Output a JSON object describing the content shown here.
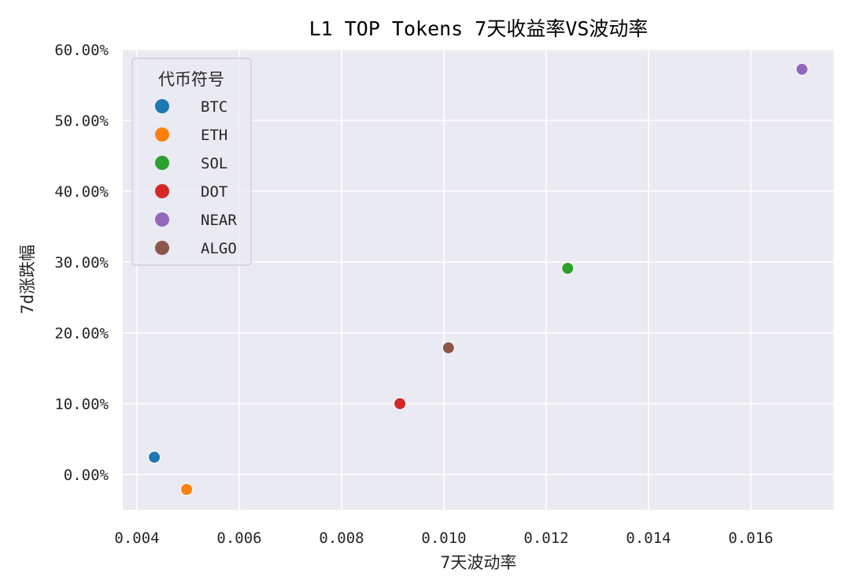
{
  "chart_data": {
    "type": "scatter",
    "title": "L1 TOP Tokens 7天收益率VS波动率",
    "xlabel": "7天波动率",
    "ylabel": "7d涨跌幅",
    "xlim": [
      0.00373,
      0.01762
    ],
    "ylim": [
      -0.052,
      0.6
    ],
    "x_ticks": [
      0.004,
      0.006,
      0.008,
      0.01,
      0.012,
      0.014,
      0.016
    ],
    "x_tick_labels": [
      "0.004",
      "0.006",
      "0.008",
      "0.010",
      "0.012",
      "0.014",
      "0.016"
    ],
    "y_ticks": [
      0.0,
      0.1,
      0.2,
      0.3,
      0.4,
      0.5,
      0.6
    ],
    "y_tick_labels": [
      "0.00%",
      "10.00%",
      "20.00%",
      "30.00%",
      "40.00%",
      "50.00%",
      "60.00%"
    ],
    "grid": true,
    "legend": {
      "title": "代币符号",
      "position": "upper left"
    },
    "series": [
      {
        "name": "BTC",
        "color": "#1f77b4",
        "x": 0.00434,
        "y": 0.0244
      },
      {
        "name": "ETH",
        "color": "#ff7f0e",
        "x": 0.00497,
        "y": -0.0211
      },
      {
        "name": "SOL",
        "color": "#2ca02c",
        "x": 0.01242,
        "y": 0.2911
      },
      {
        "name": "DOT",
        "color": "#d62728",
        "x": 0.00914,
        "y": 0.1
      },
      {
        "name": "NEAR",
        "color": "#9467bd",
        "x": 0.017,
        "y": 0.5722
      },
      {
        "name": "ALGO",
        "color": "#8c564b",
        "x": 0.01009,
        "y": 0.1789
      }
    ]
  },
  "style": {
    "plot_bg": "#eaeaf2",
    "grid_color": "#ffffff",
    "text_color": "#262626"
  }
}
